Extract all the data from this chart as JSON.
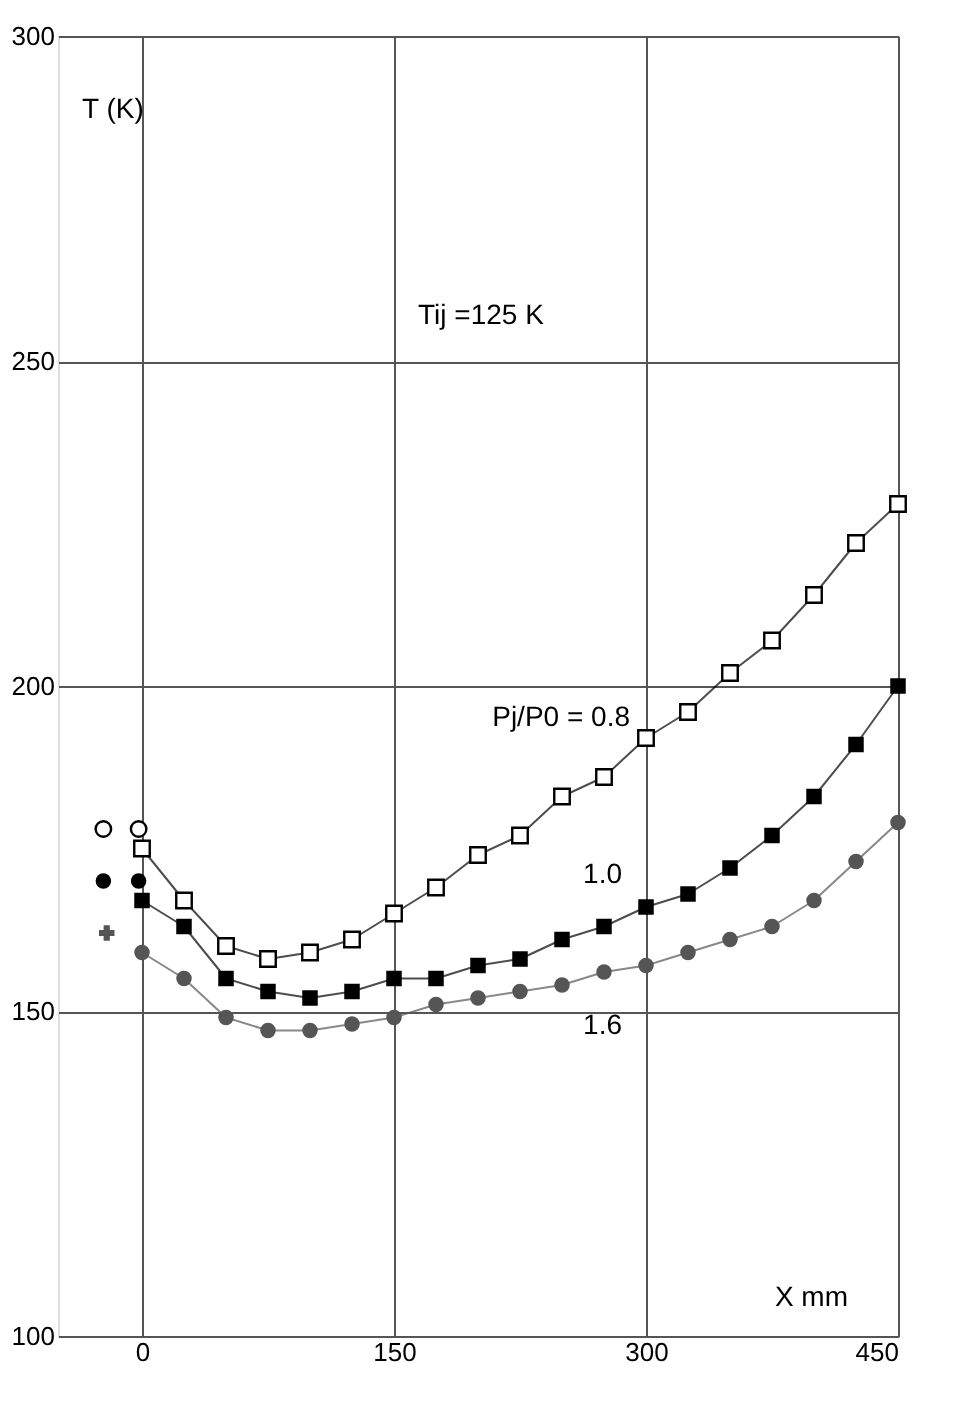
{
  "chart_data": {
    "type": "line",
    "xlabel": "X mm",
    "ylabel": "T (K)",
    "x": [
      0,
      25,
      50,
      75,
      100,
      125,
      150,
      175,
      200,
      225,
      250,
      275,
      300,
      325,
      350,
      375,
      400,
      425,
      450
    ],
    "series": [
      {
        "name": "Pj/P0 = 0.8",
        "color": "#000000",
        "marker": "square",
        "values": [
          175,
          167,
          160,
          158,
          159,
          161,
          165,
          169,
          174,
          177,
          183,
          186,
          192,
          196,
          202,
          207,
          214,
          222,
          228
        ]
      },
      {
        "name": "1.0",
        "color": "#000000",
        "marker": "square",
        "values": [
          167,
          163,
          155,
          153,
          152,
          153,
          155,
          155,
          157,
          158,
          161,
          163,
          166,
          168,
          172,
          177,
          183,
          191,
          200
        ]
      },
      {
        "name": "1.6",
        "color": "#555555",
        "marker": "circle",
        "values": [
          159,
          155,
          149,
          147,
          147,
          148,
          149,
          151,
          152,
          153,
          154,
          156,
          157,
          159,
          161,
          163,
          167,
          173,
          179
        ]
      },
      {
        "type": "scatter",
        "color": "#000000",
        "marker": "circle",
        "x": [
          -23,
          -2
        ],
        "values": [
          178,
          178
        ]
      },
      {
        "type": "scatter",
        "color": "#000000",
        "marker": "circle",
        "x": [
          -23,
          -2
        ],
        "values": [
          170,
          170
        ]
      },
      {
        "type": "scatter",
        "color": "#555555",
        "marker": "cross",
        "x": [
          -21
        ],
        "values": [
          162
        ]
      }
    ],
    "xlim": [
      -50,
      450
    ],
    "xticks": [
      0,
      150,
      300,
      450
    ],
    "ylim": [
      100,
      300
    ],
    "yticks": [
      100,
      150,
      200,
      250,
      300
    ],
    "grid": true,
    "annotations": [
      "Tij  =125 K"
    ]
  }
}
